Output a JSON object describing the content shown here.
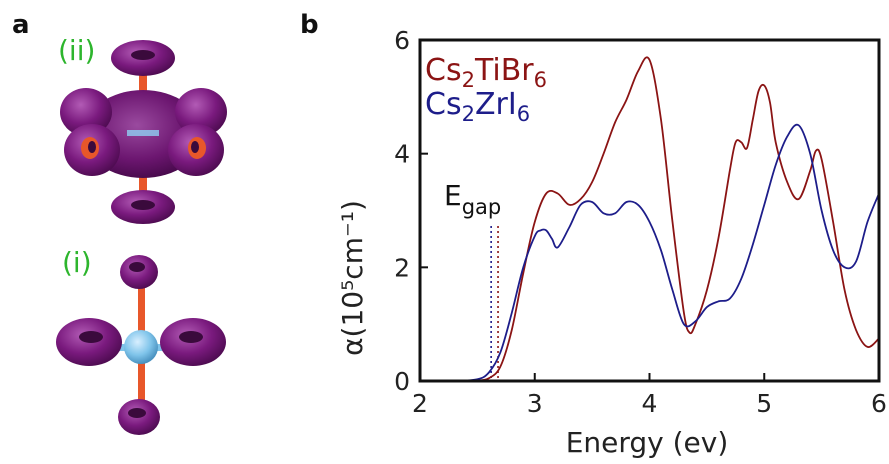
{
  "panel_a": {
    "letter": "a",
    "label_top": "(ii)",
    "label_bottom": "(i)",
    "colors": {
      "lobe": "#7a1a7e",
      "bond": "#e8572a",
      "atom": "#7fc4ea",
      "label": "#2db52d"
    }
  },
  "panel_b": {
    "letter": "b"
  },
  "chart_data": {
    "type": "line",
    "xlabel": "Energy (ev)",
    "ylabel": "α(10⁵cm⁻¹)",
    "xlim": [
      2,
      6
    ],
    "ylim": [
      0,
      6
    ],
    "xticks": [
      "2",
      "3",
      "4",
      "5",
      "6"
    ],
    "yticks": [
      "0",
      "2",
      "4",
      "6"
    ],
    "grid": false,
    "legend_placement": "top-left",
    "annotation": {
      "text_main": "E",
      "text_sub": "gap"
    },
    "gap_markers": [
      {
        "x": 2.62,
        "color": "#1d1d8a"
      },
      {
        "x": 2.68,
        "color": "#8b1414"
      }
    ],
    "series": [
      {
        "name": "Cs2TiBr6",
        "legend_main": "Cs",
        "legend_sub1": "2",
        "legend_mid": "TiBr",
        "legend_sub2": "6",
        "color": "#8b1414",
        "x": [
          2.0,
          2.3,
          2.5,
          2.6,
          2.7,
          2.8,
          2.9,
          3.0,
          3.1,
          3.2,
          3.3,
          3.4,
          3.5,
          3.6,
          3.7,
          3.8,
          3.9,
          4.0,
          4.1,
          4.2,
          4.3,
          4.35,
          4.4,
          4.5,
          4.6,
          4.7,
          4.75,
          4.8,
          4.85,
          4.9,
          4.95,
          5.0,
          5.05,
          5.1,
          5.2,
          5.3,
          5.4,
          5.45,
          5.5,
          5.6,
          5.7,
          5.8,
          5.9,
          6.0
        ],
        "y": [
          0.0,
          0.0,
          0.01,
          0.05,
          0.25,
          0.9,
          1.9,
          2.8,
          3.3,
          3.3,
          3.1,
          3.2,
          3.5,
          4.0,
          4.55,
          4.95,
          5.45,
          5.65,
          4.6,
          2.8,
          1.2,
          0.85,
          1.0,
          1.6,
          2.5,
          3.7,
          4.2,
          4.2,
          4.1,
          4.6,
          5.1,
          5.2,
          4.9,
          4.2,
          3.5,
          3.2,
          3.7,
          4.05,
          3.9,
          2.8,
          1.6,
          0.9,
          0.6,
          0.75
        ]
      },
      {
        "name": "Cs2ZrI6",
        "legend_main": "Cs",
        "legend_sub1": "2",
        "legend_mid": "ZrI",
        "legend_sub2": "6",
        "color": "#1d1d8a",
        "x": [
          2.0,
          2.3,
          2.5,
          2.6,
          2.7,
          2.8,
          2.9,
          3.0,
          3.05,
          3.1,
          3.15,
          3.2,
          3.3,
          3.4,
          3.5,
          3.6,
          3.7,
          3.8,
          3.9,
          4.0,
          4.1,
          4.2,
          4.3,
          4.4,
          4.5,
          4.6,
          4.7,
          4.8,
          4.9,
          5.0,
          5.1,
          5.2,
          5.3,
          5.4,
          5.5,
          5.6,
          5.7,
          5.8,
          5.9,
          6.0
        ],
        "y": [
          0.0,
          0.0,
          0.03,
          0.15,
          0.5,
          1.2,
          2.0,
          2.55,
          2.65,
          2.65,
          2.5,
          2.35,
          2.7,
          3.1,
          3.15,
          2.95,
          2.95,
          3.15,
          3.1,
          2.8,
          2.3,
          1.6,
          1.0,
          1.05,
          1.3,
          1.4,
          1.45,
          1.8,
          2.4,
          3.1,
          3.8,
          4.3,
          4.5,
          4.0,
          3.0,
          2.3,
          2.0,
          2.1,
          2.8,
          3.3
        ]
      }
    ]
  }
}
